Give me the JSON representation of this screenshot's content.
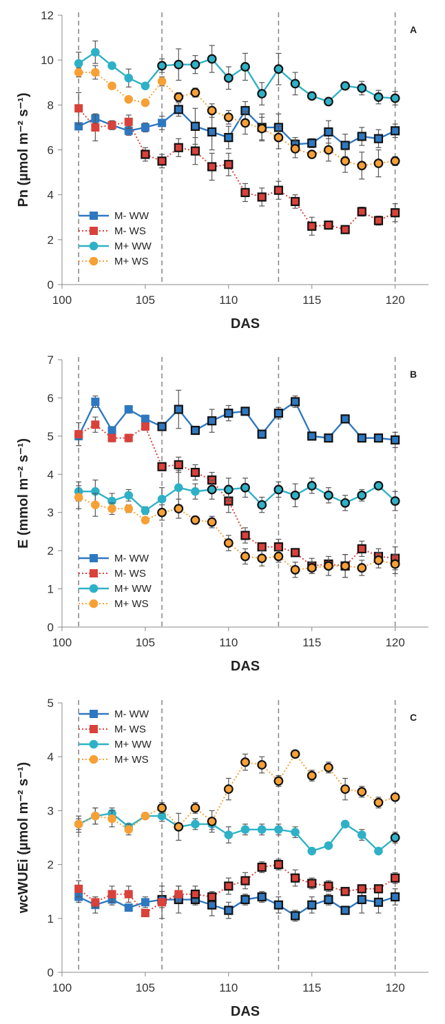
{
  "colors": {
    "M- WW": "#2e78c0",
    "M- WS": "#d9413b",
    "M+ WW": "#2eb1c6",
    "M+ WS": "#f7a035"
  },
  "chart_data": [
    {
      "type": "line",
      "panel": "A",
      "xlabel": "DAS",
      "ylabel": "Pn (µmol m⁻² s⁻¹)",
      "xlim": [
        100,
        122
      ],
      "ylim": [
        0,
        12
      ],
      "xticks": [
        100,
        105,
        110,
        115,
        120
      ],
      "yticks": [
        0,
        2,
        4,
        6,
        8,
        10,
        12
      ],
      "vlines": [
        101,
        106,
        113,
        120
      ],
      "legend_position": "bottom-left",
      "x": [
        101,
        102,
        103,
        104,
        105,
        106,
        107,
        108,
        109,
        110,
        111,
        112,
        113,
        114,
        115,
        116,
        117,
        118,
        119,
        120
      ],
      "series": [
        {
          "name": "M- WW",
          "marker": "square",
          "line": "solid",
          "values": [
            7.05,
            7.4,
            7.1,
            6.85,
            7.0,
            7.2,
            7.8,
            7.05,
            6.8,
            6.55,
            7.75,
            7.0,
            7.0,
            6.25,
            6.3,
            6.8,
            6.2,
            6.6,
            6.5,
            6.85
          ],
          "errors": [
            0.1,
            0.2,
            0.1,
            0.2,
            0.2,
            0.3,
            0.3,
            0.8,
            0.8,
            0.5,
            0.4,
            0.6,
            0.6,
            0.3,
            0.2,
            0.5,
            0.5,
            0.4,
            0.4,
            0.3
          ],
          "outlined": [
            false,
            false,
            false,
            false,
            false,
            false,
            true,
            true,
            true,
            true,
            true,
            true,
            true,
            true,
            true,
            true,
            true,
            true,
            true,
            true
          ]
        },
        {
          "name": "M- WS",
          "marker": "square",
          "line": "dotted",
          "values": [
            7.85,
            7.0,
            7.1,
            7.25,
            5.8,
            5.5,
            6.1,
            5.95,
            5.25,
            5.35,
            4.1,
            3.9,
            4.2,
            3.7,
            2.6,
            2.65,
            2.45,
            3.25,
            2.85,
            3.2
          ],
          "errors": [
            0.7,
            0.6,
            0.2,
            0.3,
            0.3,
            0.3,
            0.4,
            0.6,
            0.6,
            0.5,
            0.4,
            0.4,
            0.4,
            0.3,
            0.4,
            0.1,
            0.1,
            0.2,
            0.2,
            0.4
          ],
          "outlined": [
            false,
            false,
            false,
            false,
            true,
            true,
            true,
            true,
            true,
            true,
            true,
            true,
            true,
            true,
            true,
            true,
            true,
            true,
            true,
            true
          ]
        },
        {
          "name": "M+ WW",
          "marker": "circle",
          "line": "solid",
          "values": [
            9.85,
            10.35,
            9.75,
            9.2,
            8.85,
            9.75,
            9.8,
            9.8,
            10.05,
            9.2,
            9.7,
            8.5,
            9.6,
            8.95,
            8.4,
            8.15,
            8.85,
            8.75,
            8.35,
            8.3
          ],
          "errors": [
            0.5,
            0.5,
            0.1,
            0.4,
            0.1,
            0.3,
            0.7,
            0.4,
            0.6,
            0.5,
            0.6,
            0.5,
            0.7,
            0.5,
            0.1,
            0.1,
            0.1,
            0.3,
            0.3,
            0.3
          ],
          "outlined": [
            false,
            false,
            false,
            false,
            false,
            true,
            true,
            true,
            true,
            true,
            true,
            true,
            true,
            true,
            true,
            true,
            true,
            true,
            true,
            true
          ]
        },
        {
          "name": "M+ WS",
          "marker": "circle",
          "line": "dotted",
          "values": [
            9.45,
            9.45,
            8.85,
            8.25,
            8.1,
            9.05,
            8.35,
            8.55,
            7.75,
            7.45,
            7.2,
            6.95,
            6.55,
            6.05,
            5.8,
            6.0,
            5.5,
            5.3,
            5.4,
            5.5
          ],
          "errors": [
            0.2,
            0.3,
            0.1,
            0.1,
            0.1,
            0.2,
            0.2,
            0.2,
            0.3,
            0.3,
            0.5,
            0.5,
            0.5,
            0.4,
            0.1,
            0.5,
            0.5,
            0.6,
            0.6,
            0.2
          ],
          "outlined": [
            false,
            false,
            false,
            false,
            false,
            false,
            true,
            true,
            true,
            true,
            true,
            true,
            true,
            true,
            true,
            true,
            true,
            true,
            true,
            true
          ]
        }
      ]
    },
    {
      "type": "line",
      "panel": "B",
      "xlabel": "DAS",
      "ylabel": "E (mmol m⁻² s⁻¹)",
      "xlim": [
        100,
        122
      ],
      "ylim": [
        0,
        7
      ],
      "xticks": [
        100,
        105,
        110,
        115,
        120
      ],
      "yticks": [
        0,
        1,
        2,
        3,
        4,
        5,
        6,
        7
      ],
      "vlines": [
        101,
        106,
        113,
        120
      ],
      "legend_position": "bottom-left",
      "x": [
        101,
        102,
        103,
        104,
        105,
        106,
        107,
        108,
        109,
        110,
        111,
        112,
        113,
        114,
        115,
        116,
        117,
        118,
        119,
        120
      ],
      "series": [
        {
          "name": "M- WW",
          "marker": "square",
          "line": "solid",
          "values": [
            5.0,
            5.9,
            5.15,
            5.7,
            5.45,
            5.25,
            5.7,
            5.15,
            5.4,
            5.6,
            5.65,
            5.05,
            5.6,
            5.9,
            5.0,
            4.95,
            5.45,
            4.95,
            4.95,
            4.9
          ],
          "errors": [
            0.1,
            0.15,
            0.1,
            0.1,
            0.1,
            0.1,
            0.5,
            0.1,
            0.3,
            0.2,
            0.1,
            0.1,
            0.15,
            0.15,
            0.05,
            0.05,
            0.05,
            0.1,
            0.1,
            0.2
          ],
          "outlined": [
            false,
            false,
            false,
            false,
            false,
            true,
            true,
            true,
            true,
            true,
            true,
            true,
            true,
            true,
            true,
            true,
            true,
            true,
            true,
            true
          ]
        },
        {
          "name": "M- WS",
          "marker": "square",
          "line": "dotted",
          "values": [
            5.05,
            5.3,
            4.95,
            4.95,
            5.25,
            4.2,
            4.25,
            4.05,
            3.85,
            3.3,
            2.4,
            2.1,
            2.1,
            1.95,
            1.6,
            1.65,
            1.6,
            2.05,
            1.85,
            1.8
          ],
          "errors": [
            0.3,
            0.2,
            0.1,
            0.1,
            0.1,
            0.1,
            0.2,
            0.2,
            0.2,
            0.3,
            0.2,
            0.1,
            0.2,
            0.1,
            0.2,
            0.1,
            0.3,
            0.2,
            0.2,
            0.3
          ],
          "outlined": [
            false,
            false,
            false,
            false,
            false,
            true,
            true,
            true,
            true,
            true,
            true,
            true,
            true,
            true,
            true,
            true,
            true,
            true,
            true,
            true
          ]
        },
        {
          "name": "M+ WW",
          "marker": "circle",
          "line": "solid",
          "values": [
            3.55,
            3.55,
            3.3,
            3.45,
            3.05,
            3.35,
            3.65,
            3.55,
            3.6,
            3.6,
            3.65,
            3.2,
            3.6,
            3.45,
            3.7,
            3.45,
            3.25,
            3.45,
            3.7,
            3.3
          ],
          "errors": [
            0.25,
            0.3,
            0.2,
            0.15,
            0.1,
            0.3,
            0.45,
            0.2,
            0.25,
            0.3,
            0.25,
            0.2,
            0.2,
            0.3,
            0.2,
            0.2,
            0.2,
            0.15,
            0.1,
            0.25
          ],
          "outlined": [
            false,
            false,
            false,
            false,
            false,
            false,
            false,
            false,
            true,
            true,
            true,
            true,
            true,
            true,
            true,
            true,
            true,
            true,
            true,
            true
          ]
        },
        {
          "name": "M+ WS",
          "marker": "circle",
          "line": "dotted",
          "values": [
            3.4,
            3.2,
            3.1,
            3.1,
            2.8,
            3.0,
            3.1,
            2.8,
            2.75,
            2.2,
            1.85,
            1.8,
            1.85,
            1.5,
            1.55,
            1.6,
            1.6,
            1.55,
            1.75,
            1.65
          ],
          "errors": [
            0.3,
            0.3,
            0.15,
            0.1,
            0.05,
            0.2,
            0.25,
            0.1,
            0.15,
            0.2,
            0.2,
            0.2,
            0.15,
            0.2,
            0.15,
            0.25,
            0.3,
            0.2,
            0.2,
            0.25
          ],
          "outlined": [
            false,
            false,
            false,
            false,
            false,
            true,
            true,
            true,
            true,
            true,
            true,
            true,
            true,
            true,
            true,
            true,
            true,
            true,
            true,
            true
          ]
        }
      ]
    },
    {
      "type": "line",
      "panel": "C",
      "xlabel": "DAS",
      "ylabel": "wcWUEi (µmol m⁻² s⁻¹)",
      "xlim": [
        100,
        122
      ],
      "ylim": [
        0,
        5
      ],
      "xticks": [
        100,
        105,
        110,
        115,
        120
      ],
      "yticks": [
        0,
        1,
        2,
        3,
        4,
        5
      ],
      "vlines": [
        101,
        106,
        113,
        120
      ],
      "legend_position": "top-left",
      "x": [
        101,
        102,
        103,
        104,
        105,
        106,
        107,
        108,
        109,
        110,
        111,
        112,
        113,
        114,
        115,
        116,
        117,
        118,
        119,
        120
      ],
      "series": [
        {
          "name": "M- WW",
          "marker": "square",
          "line": "solid",
          "values": [
            1.4,
            1.25,
            1.35,
            1.2,
            1.3,
            1.35,
            1.35,
            1.35,
            1.25,
            1.15,
            1.35,
            1.4,
            1.25,
            1.05,
            1.25,
            1.35,
            1.15,
            1.35,
            1.3,
            1.4
          ],
          "errors": [
            0.1,
            0.15,
            0.1,
            0.05,
            0.1,
            0.15,
            0.25,
            0.1,
            0.2,
            0.15,
            0.1,
            0.1,
            0.15,
            0.1,
            0.15,
            0.1,
            0.05,
            0.25,
            0.2,
            0.15
          ],
          "outlined": [
            false,
            false,
            false,
            false,
            false,
            true,
            true,
            true,
            true,
            true,
            true,
            true,
            true,
            true,
            true,
            true,
            true,
            true,
            true,
            true
          ]
        },
        {
          "name": "M- WS",
          "marker": "square",
          "line": "dotted",
          "values": [
            1.55,
            1.3,
            1.45,
            1.45,
            1.1,
            1.3,
            1.45,
            1.45,
            1.4,
            1.6,
            1.7,
            1.95,
            2.0,
            1.75,
            1.65,
            1.6,
            1.5,
            1.55,
            1.55,
            1.75
          ],
          "errors": [
            0.15,
            0.1,
            0.15,
            0.15,
            0.05,
            0.3,
            0.15,
            0.15,
            0.1,
            0.15,
            0.15,
            0.1,
            0.1,
            0.15,
            0.1,
            0.1,
            0.05,
            0.05,
            0.05,
            0.1
          ],
          "outlined": [
            false,
            false,
            false,
            false,
            false,
            false,
            false,
            true,
            true,
            true,
            true,
            true,
            true,
            true,
            true,
            true,
            true,
            true,
            true,
            true
          ]
        },
        {
          "name": "M+ WW",
          "marker": "circle",
          "line": "solid",
          "values": [
            2.75,
            2.9,
            2.95,
            2.7,
            2.9,
            2.9,
            2.7,
            2.75,
            2.75,
            2.55,
            2.65,
            2.65,
            2.65,
            2.6,
            2.25,
            2.35,
            2.75,
            2.55,
            2.25,
            2.5
          ],
          "errors": [
            0.15,
            0.15,
            0.1,
            0.05,
            0.05,
            0.1,
            0.05,
            0.1,
            0.1,
            0.15,
            0.1,
            0.1,
            0.1,
            0.1,
            0.05,
            0.05,
            0.05,
            0.1,
            0.05,
            0.1
          ],
          "outlined": [
            false,
            false,
            false,
            false,
            false,
            false,
            false,
            false,
            false,
            false,
            false,
            false,
            false,
            false,
            false,
            false,
            false,
            false,
            false,
            true
          ]
        },
        {
          "name": "M+ WS",
          "marker": "circle",
          "line": "dotted",
          "values": [
            2.75,
            2.9,
            2.85,
            2.65,
            2.9,
            3.05,
            2.7,
            3.05,
            2.8,
            3.4,
            3.9,
            3.85,
            3.55,
            4.05,
            3.65,
            3.8,
            3.4,
            3.35,
            3.15,
            3.25
          ],
          "errors": [
            0.1,
            0.15,
            0.15,
            0.1,
            0.05,
            0.1,
            0.25,
            0.1,
            0.2,
            0.2,
            0.15,
            0.15,
            0.1,
            0.05,
            0.1,
            0.1,
            0.2,
            0.1,
            0.1,
            0.05
          ],
          "outlined": [
            false,
            false,
            false,
            false,
            false,
            true,
            true,
            true,
            true,
            true,
            true,
            true,
            true,
            true,
            true,
            true,
            true,
            true,
            true,
            true
          ]
        }
      ]
    }
  ]
}
